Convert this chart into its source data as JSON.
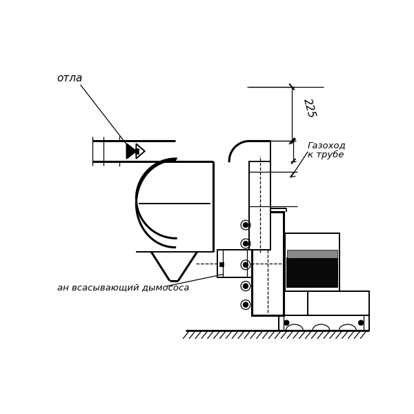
{
  "bg_color": "#ffffff",
  "lc": "#000000",
  "lw": 1.4,
  "lw2": 2.2,
  "lwt": 0.9,
  "label_kotla": "отла",
  "label_gazokhod1": "Газоход",
  "label_gazokhod2": "к трубе",
  "label_patron": "ан всасывающий дымососа",
  "dim_225": "225"
}
